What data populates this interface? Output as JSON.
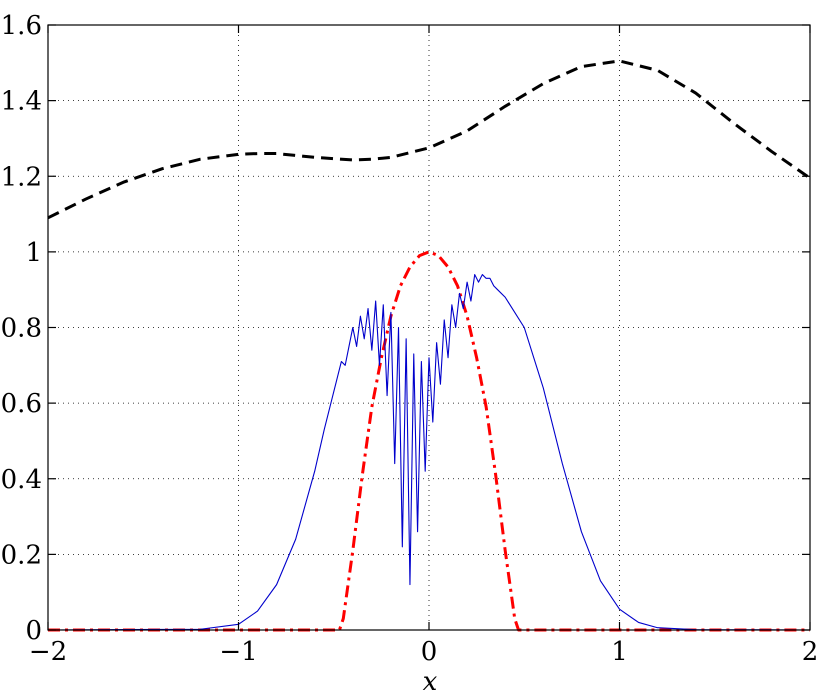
{
  "chart_data": {
    "type": "line",
    "title": "",
    "xlabel": "x",
    "ylabel": "",
    "xlim": [
      -2,
      2
    ],
    "ylim": [
      0,
      1.6
    ],
    "xticks": [
      -2,
      -1,
      0,
      1,
      2
    ],
    "xtick_labels": [
      "−2",
      "−1",
      "0",
      "1",
      "2"
    ],
    "yticks": [
      0,
      0.2,
      0.4,
      0.6,
      0.8,
      1,
      1.2,
      1.4,
      1.6
    ],
    "ytick_labels": [
      "0",
      "0.2",
      "0.4",
      "0.6",
      "0.8",
      "1",
      "1.2",
      "1.4",
      "1.6"
    ],
    "grid": true,
    "legend": "none",
    "series": [
      {
        "style": "dashed",
        "color": "#000000",
        "x": [
          -2.0,
          -1.8,
          -1.6,
          -1.4,
          -1.2,
          -1.0,
          -0.9,
          -0.8,
          -0.6,
          -0.4,
          -0.3,
          -0.2,
          0.0,
          0.2,
          0.4,
          0.6,
          0.8,
          1.0,
          1.2,
          1.4,
          1.6,
          1.8,
          2.0
        ],
        "y": [
          1.09,
          1.14,
          1.185,
          1.22,
          1.245,
          1.258,
          1.26,
          1.26,
          1.25,
          1.243,
          1.245,
          1.25,
          1.275,
          1.32,
          1.385,
          1.445,
          1.49,
          1.505,
          1.48,
          1.42,
          1.34,
          1.265,
          1.195
        ]
      },
      {
        "style": "dashdot",
        "color": "#ff0000",
        "x": [
          -2.0,
          -1.0,
          -0.47,
          -0.45,
          -0.4,
          -0.35,
          -0.3,
          -0.25,
          -0.2,
          -0.15,
          -0.1,
          -0.05,
          0.0,
          0.05,
          0.1,
          0.15,
          0.2,
          0.25,
          0.3,
          0.35,
          0.4,
          0.45,
          0.47,
          1.0,
          2.0
        ],
        "y": [
          0,
          0,
          0,
          0.03,
          0.21,
          0.41,
          0.59,
          0.72,
          0.83,
          0.91,
          0.96,
          0.99,
          1.0,
          0.99,
          0.96,
          0.91,
          0.83,
          0.72,
          0.59,
          0.41,
          0.21,
          0.03,
          0,
          0,
          0
        ]
      },
      {
        "style": "solid",
        "color": "#0000cc",
        "x": [
          -2.0,
          -1.2,
          -1.0,
          -0.9,
          -0.8,
          -0.7,
          -0.6,
          -0.55,
          -0.5,
          -0.48,
          -0.46,
          -0.44,
          -0.42,
          -0.4,
          -0.38,
          -0.36,
          -0.34,
          -0.32,
          -0.3,
          -0.28,
          -0.26,
          -0.24,
          -0.22,
          -0.2,
          -0.18,
          -0.16,
          -0.14,
          -0.12,
          -0.1,
          -0.08,
          -0.06,
          -0.04,
          -0.02,
          0.0,
          0.02,
          0.04,
          0.06,
          0.08,
          0.1,
          0.12,
          0.14,
          0.16,
          0.18,
          0.2,
          0.22,
          0.24,
          0.26,
          0.28,
          0.3,
          0.32,
          0.34,
          0.36,
          0.4,
          0.5,
          0.6,
          0.7,
          0.8,
          0.9,
          1.0,
          1.1,
          1.2,
          1.4,
          2.0
        ],
        "y": [
          0,
          0.002,
          0.015,
          0.05,
          0.12,
          0.24,
          0.42,
          0.53,
          0.63,
          0.67,
          0.71,
          0.7,
          0.75,
          0.8,
          0.75,
          0.83,
          0.77,
          0.85,
          0.74,
          0.87,
          0.7,
          0.86,
          0.62,
          0.84,
          0.44,
          0.8,
          0.22,
          0.77,
          0.12,
          0.73,
          0.26,
          0.71,
          0.42,
          0.72,
          0.55,
          0.76,
          0.65,
          0.82,
          0.72,
          0.86,
          0.8,
          0.89,
          0.85,
          0.92,
          0.87,
          0.94,
          0.92,
          0.94,
          0.93,
          0.93,
          0.91,
          0.9,
          0.88,
          0.8,
          0.64,
          0.44,
          0.26,
          0.13,
          0.055,
          0.02,
          0.006,
          0.001,
          0
        ]
      }
    ]
  }
}
